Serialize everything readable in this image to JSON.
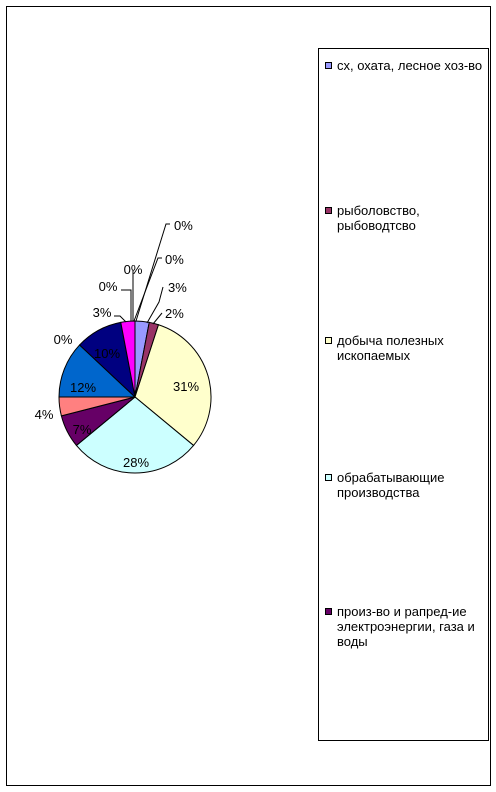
{
  "chart_data": {
    "type": "pie",
    "slices": [
      {
        "label": "3%",
        "value": 3
      },
      {
        "label": "2%",
        "value": 2
      },
      {
        "label": "31%",
        "value": 31
      },
      {
        "label": "28%",
        "value": 28
      },
      {
        "label": "7%",
        "value": 7
      },
      {
        "label": "4%",
        "value": 4
      },
      {
        "label": "12%",
        "value": 12
      },
      {
        "label": "0%",
        "value": 0
      },
      {
        "label": "10%",
        "value": 10
      },
      {
        "label": "3%",
        "value": 3
      },
      {
        "label": "0%",
        "value": 0
      },
      {
        "label": "0%",
        "value": 0
      },
      {
        "label": "0%",
        "value": 0
      },
      {
        "label": "0%",
        "value": 0
      }
    ],
    "colors": [
      "#9999ff",
      "#993366",
      "#ffffcc",
      "#ccffff",
      "#660066",
      "#ff8080",
      "#0066cc",
      "#ccccff",
      "#000080",
      "#ff00ff",
      "#ffff00",
      "#00ffff",
      "#800080",
      "#800000"
    ],
    "legend": {
      "placement": "right",
      "entries": [
        {
          "label": "сх, охата, лесное хоз-во",
          "color": "#9999ff"
        },
        {
          "label": "рыболовство, рыбоводтсво",
          "color": "#993366"
        },
        {
          "label": "добыча полезных ископаемых",
          "color": "#ffffcc"
        },
        {
          "label": "обрабатывающие производства",
          "color": "#ccffff"
        },
        {
          "label": "произ-во и рапред-ие электроэнергии, газа и воды",
          "color": "#660066"
        }
      ]
    }
  }
}
